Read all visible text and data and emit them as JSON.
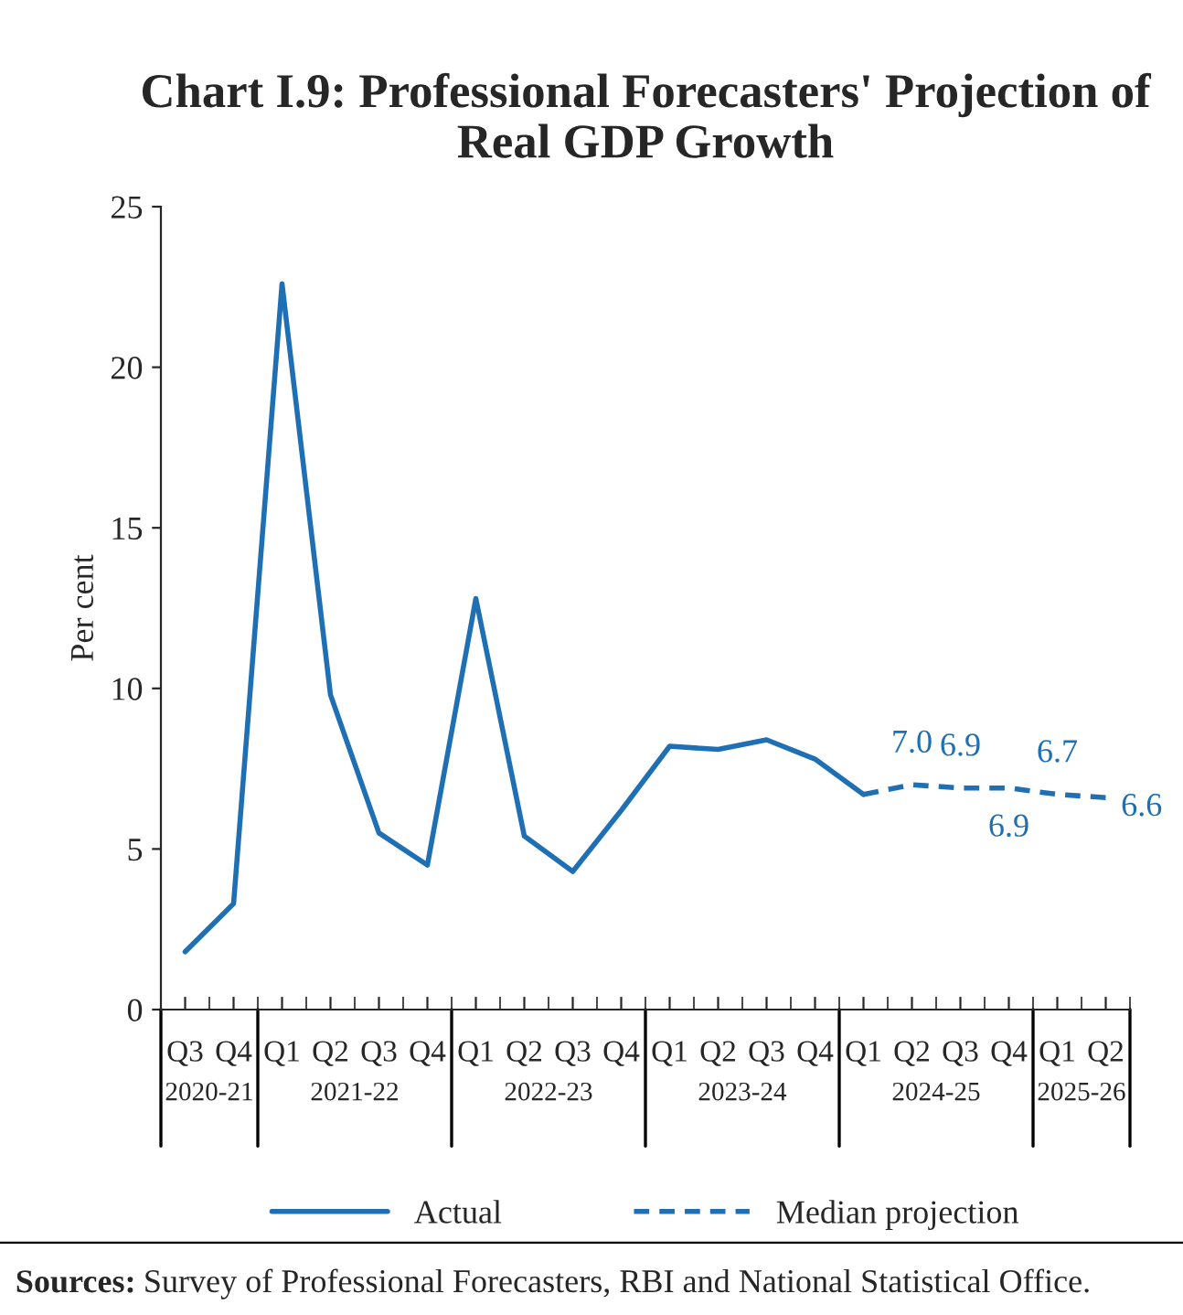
{
  "chart_data": {
    "type": "line",
    "title": "Chart I.9: Professional Forecasters' Projection of Real GDP Growth",
    "ylabel": "Per cent",
    "categories": [
      "Q3",
      "Q4",
      "Q1",
      "Q2",
      "Q3",
      "Q4",
      "Q1",
      "Q2",
      "Q3",
      "Q4",
      "Q1",
      "Q2",
      "Q3",
      "Q4",
      "Q1",
      "Q2",
      "Q3",
      "Q4",
      "Q1",
      "Q2"
    ],
    "series": [
      {
        "name": "Actual",
        "color": "#1f6fb4",
        "line_style": "solid",
        "values": [
          1.8,
          3.3,
          22.6,
          9.8,
          5.5,
          4.5,
          12.8,
          5.4,
          4.3,
          6.2,
          8.2,
          8.1,
          8.4,
          7.8,
          6.7,
          null,
          null,
          null,
          null,
          null
        ]
      },
      {
        "name": "Median projection",
        "color": "#1f6fb4",
        "line_style": "dashed",
        "values": [
          null,
          null,
          null,
          null,
          null,
          null,
          null,
          null,
          null,
          null,
          null,
          null,
          null,
          null,
          6.7,
          7.0,
          6.9,
          6.9,
          6.7,
          6.6
        ],
        "value_labels": [
          null,
          null,
          null,
          null,
          null,
          null,
          null,
          null,
          null,
          null,
          null,
          null,
          null,
          null,
          null,
          "7.0",
          "6.9",
          "6.9",
          "6.7",
          "6.6"
        ]
      }
    ],
    "ylim": [
      0,
      25
    ],
    "yticks": [
      0,
      5,
      10,
      15,
      20,
      25
    ],
    "legend": "bottom",
    "grid": false,
    "marker": "none",
    "annotations": [
      "2020-21",
      "2021-22",
      "2022-23",
      "2023-24",
      "2024-25",
      "2025-26",
      "Sources: Survey of Professional Forecasters, RBI and National Statistical Office."
    ]
  }
}
